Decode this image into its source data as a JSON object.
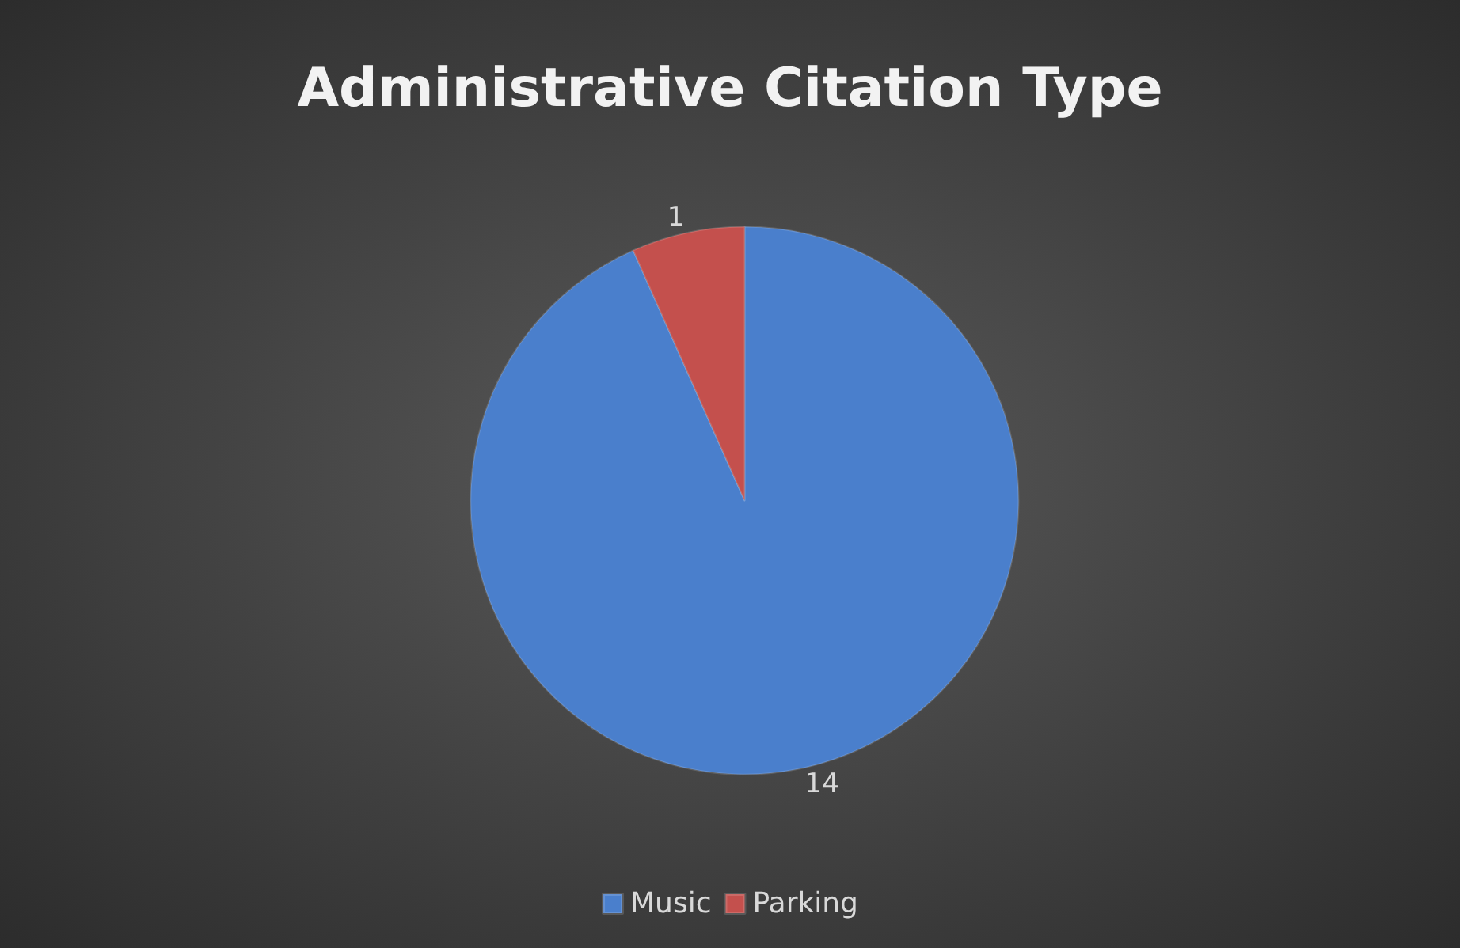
{
  "chart_data": {
    "type": "pie",
    "title": "Administrative Citation Type",
    "categories": [
      "Music",
      "Parking"
    ],
    "values": [
      14,
      1
    ],
    "colors": [
      "#4a7fcc",
      "#c4504d"
    ],
    "data_labels": true,
    "legend": "bottom"
  }
}
